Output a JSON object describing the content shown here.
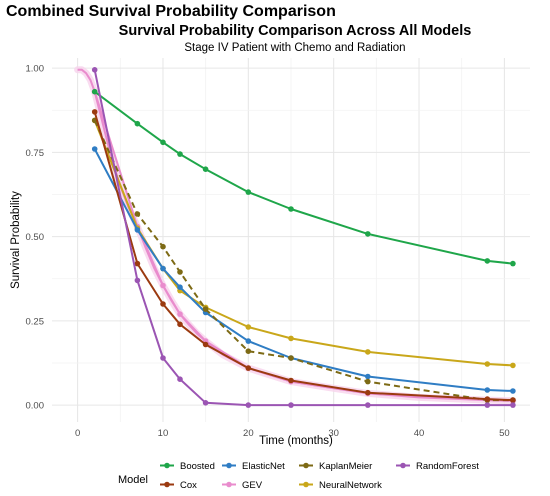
{
  "page": {
    "title": "Combined Survival Probability Comparison"
  },
  "chart_data": {
    "type": "line",
    "title": "Survival Probability Comparison Across All Models",
    "subtitle": "Stage IV Patient with Chemo and Radiation",
    "xlabel": "Time (months)",
    "ylabel": "Survival Probability",
    "xlim": [
      -3,
      53
    ],
    "ylim": [
      -0.05,
      1.03
    ],
    "x_ticks": [
      0,
      10,
      20,
      30,
      40,
      50
    ],
    "y_ticks": [
      0.0,
      0.25,
      0.5,
      0.75,
      1.0
    ],
    "x_tick_labels": [
      "0",
      "10",
      "20",
      "30",
      "40",
      "50"
    ],
    "y_tick_labels": [
      "0.00",
      "0.25",
      "0.50",
      "0.75",
      "1.00"
    ],
    "grid": true,
    "legend": {
      "title": "Model",
      "placement": "bottom"
    },
    "series": [
      {
        "name": "Boosted",
        "color": "#1fa64a",
        "dashed": false,
        "lw": 2,
        "points": [
          [
            2,
            0.93
          ],
          [
            7,
            0.835
          ],
          [
            10,
            0.78
          ],
          [
            12,
            0.745
          ],
          [
            15,
            0.7
          ],
          [
            20,
            0.632
          ],
          [
            25,
            0.582
          ],
          [
            34,
            0.508
          ],
          [
            48,
            0.428
          ],
          [
            51,
            0.42
          ]
        ]
      },
      {
        "name": "Cox",
        "color": "#9b3a10",
        "dashed": false,
        "lw": 2,
        "points": [
          [
            2,
            0.87
          ],
          [
            7,
            0.42
          ],
          [
            10,
            0.3
          ],
          [
            12,
            0.24
          ],
          [
            15,
            0.18
          ],
          [
            20,
            0.11
          ],
          [
            25,
            0.073
          ],
          [
            34,
            0.037
          ],
          [
            48,
            0.018
          ],
          [
            51,
            0.015
          ]
        ]
      },
      {
        "name": "ElasticNet",
        "color": "#2f7dc4",
        "dashed": false,
        "lw": 2,
        "points": [
          [
            2,
            0.76
          ],
          [
            7,
            0.52
          ],
          [
            10,
            0.405
          ],
          [
            12,
            0.35
          ],
          [
            15,
            0.275
          ],
          [
            20,
            0.19
          ],
          [
            25,
            0.14
          ],
          [
            34,
            0.085
          ],
          [
            48,
            0.045
          ],
          [
            51,
            0.042
          ]
        ]
      },
      {
        "name": "GEV",
        "color": "#e98ccd",
        "dashed": false,
        "lw": 2,
        "points": [
          [
            2,
            0.93
          ],
          [
            7,
            0.53
          ],
          [
            10,
            0.355
          ],
          [
            12,
            0.27
          ],
          [
            15,
            0.19
          ],
          [
            20,
            0.11
          ],
          [
            25,
            0.07
          ],
          [
            34,
            0.035
          ],
          [
            48,
            0.015
          ],
          [
            51,
            0.013
          ]
        ]
      },
      {
        "name": "KaplanMeier",
        "color": "#7d6a15",
        "dashed": true,
        "lw": 2,
        "points": [
          [
            2,
            0.845
          ],
          [
            7,
            0.567
          ],
          [
            10,
            0.47
          ],
          [
            12,
            0.395
          ],
          [
            15,
            0.285
          ],
          [
            20,
            0.16
          ],
          [
            25,
            0.14
          ],
          [
            34,
            0.07
          ],
          [
            48,
            0.015
          ],
          [
            51,
            0.015
          ]
        ]
      },
      {
        "name": "NeuralNetwork",
        "color": "#c9a71a",
        "dashed": false,
        "lw": 2,
        "points": [
          [
            2,
            0.845
          ],
          [
            7,
            0.525
          ],
          [
            10,
            0.405
          ],
          [
            12,
            0.34
          ],
          [
            15,
            0.29
          ],
          [
            20,
            0.232
          ],
          [
            25,
            0.198
          ],
          [
            34,
            0.158
          ],
          [
            48,
            0.122
          ],
          [
            51,
            0.118
          ]
        ]
      },
      {
        "name": "RandomForest",
        "color": "#9b55b3",
        "dashed": false,
        "lw": 2,
        "points": [
          [
            2,
            0.995
          ],
          [
            7,
            0.37
          ],
          [
            10,
            0.14
          ],
          [
            12,
            0.077
          ],
          [
            15,
            0.007
          ],
          [
            20,
            0.0
          ],
          [
            25,
            0.0
          ],
          [
            34,
            0.0
          ],
          [
            48,
            0.0
          ],
          [
            51,
            0.0
          ]
        ]
      }
    ],
    "gev_curve": {
      "color": "#e98ccd",
      "points": [
        [
          0,
          0.995
        ],
        [
          0.5,
          0.995
        ],
        [
          1,
          0.985
        ],
        [
          1.5,
          0.965
        ],
        [
          2,
          0.93
        ],
        [
          3,
          0.83
        ],
        [
          4,
          0.73
        ],
        [
          5,
          0.65
        ],
        [
          6,
          0.585
        ],
        [
          7,
          0.53
        ],
        [
          8,
          0.465
        ],
        [
          9,
          0.405
        ],
        [
          10,
          0.355
        ],
        [
          11,
          0.31
        ],
        [
          12,
          0.27
        ],
        [
          13,
          0.24
        ],
        [
          14,
          0.212
        ],
        [
          15,
          0.19
        ],
        [
          17,
          0.15
        ],
        [
          20,
          0.11
        ],
        [
          25,
          0.07
        ],
        [
          30,
          0.05
        ],
        [
          34,
          0.035
        ],
        [
          40,
          0.023
        ],
        [
          48,
          0.015
        ],
        [
          51,
          0.013
        ]
      ]
    },
    "legend_rows": [
      [
        "Boosted",
        "ElasticNet",
        "KaplanMeier",
        "RandomForest"
      ],
      [
        "Cox",
        "GEV",
        "NeuralNetwork"
      ]
    ]
  }
}
